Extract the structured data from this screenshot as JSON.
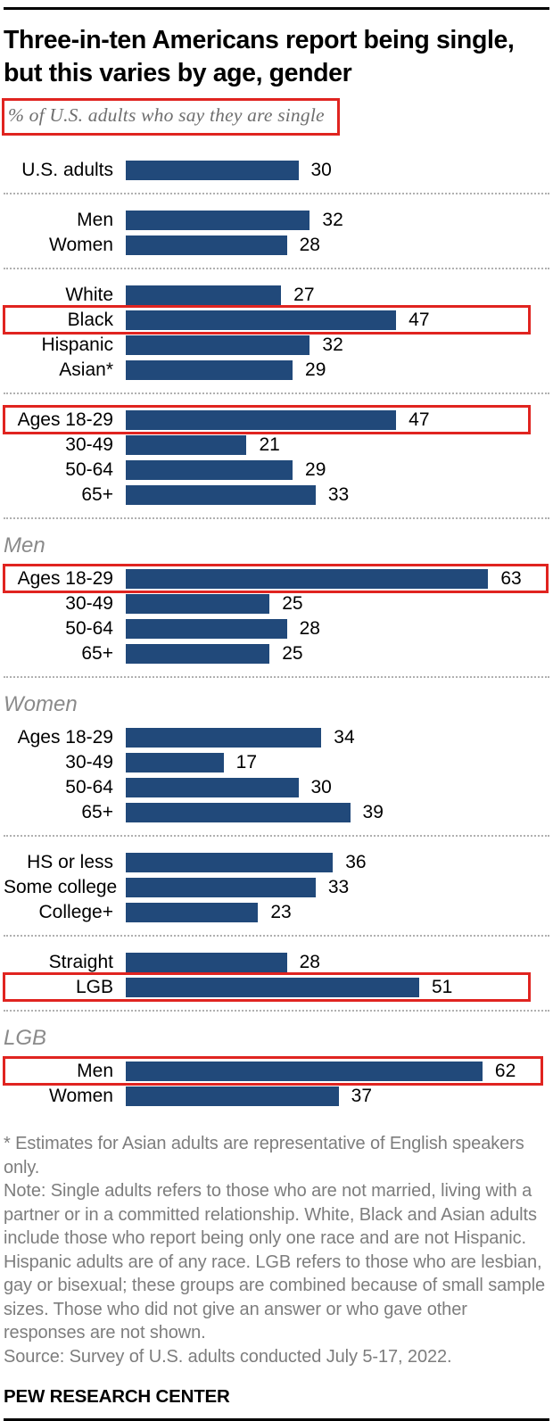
{
  "header": {
    "title": "Three-in-ten Americans report being single, but this varies by age, gender",
    "subtitle": "% of U.S. adults who say they are single"
  },
  "chart_data": {
    "type": "bar",
    "orientation": "horizontal",
    "unit": "%",
    "xlim": [
      0,
      70
    ],
    "grid": false,
    "bar_color": "#21497a",
    "highlight_box_color": "#e02420",
    "title": "Three-in-ten Americans report being single, but this varies by age, gender",
    "xlabel": "",
    "ylabel": "",
    "groups": [
      {
        "header": null,
        "rows": [
          {
            "label": "U.S. adults",
            "value": 30,
            "highlight": false
          }
        ]
      },
      {
        "header": null,
        "rows": [
          {
            "label": "Men",
            "value": 32,
            "highlight": false
          },
          {
            "label": "Women",
            "value": 28,
            "highlight": false
          }
        ]
      },
      {
        "header": null,
        "rows": [
          {
            "label": "White",
            "value": 27,
            "highlight": false
          },
          {
            "label": "Black",
            "value": 47,
            "highlight": true
          },
          {
            "label": "Hispanic",
            "value": 32,
            "highlight": false
          },
          {
            "label": "Asian*",
            "value": 29,
            "highlight": false
          }
        ]
      },
      {
        "header": null,
        "rows": [
          {
            "label": "Ages 18-29",
            "value": 47,
            "highlight": true
          },
          {
            "label": "30-49",
            "value": 21,
            "highlight": false
          },
          {
            "label": "50-64",
            "value": 29,
            "highlight": false
          },
          {
            "label": "65+",
            "value": 33,
            "highlight": false
          }
        ]
      },
      {
        "header": "Men",
        "rows": [
          {
            "label": "Ages 18-29",
            "value": 63,
            "highlight": true
          },
          {
            "label": "30-49",
            "value": 25,
            "highlight": false
          },
          {
            "label": "50-64",
            "value": 28,
            "highlight": false
          },
          {
            "label": "65+",
            "value": 25,
            "highlight": false
          }
        ]
      },
      {
        "header": "Women",
        "rows": [
          {
            "label": "Ages 18-29",
            "value": 34,
            "highlight": false
          },
          {
            "label": "30-49",
            "value": 17,
            "highlight": false
          },
          {
            "label": "50-64",
            "value": 30,
            "highlight": false
          },
          {
            "label": "65+",
            "value": 39,
            "highlight": false
          }
        ]
      },
      {
        "header": null,
        "rows": [
          {
            "label": "HS or less",
            "value": 36,
            "highlight": false
          },
          {
            "label": "Some college",
            "value": 33,
            "highlight": false
          },
          {
            "label": "College+",
            "value": 23,
            "highlight": false
          }
        ]
      },
      {
        "header": null,
        "rows": [
          {
            "label": "Straight",
            "value": 28,
            "highlight": false
          },
          {
            "label": "LGB",
            "value": 51,
            "highlight": true
          }
        ]
      },
      {
        "header": "LGB",
        "rows": [
          {
            "label": "Men",
            "value": 62,
            "highlight": true
          },
          {
            "label": "Women",
            "value": 37,
            "highlight": false
          }
        ]
      }
    ]
  },
  "footer": {
    "asterisk_note": "* Estimates for Asian adults are representative of English speakers only.",
    "note": "Note: Single adults refers to those who are not married, living with a partner or in a committed relationship. White, Black and Asian adults include those who report being only one race and are not Hispanic. Hispanic adults are of any race. LGB refers to those who are lesbian, gay or bisexual; these groups are combined because of small sample sizes. Those who did not give an answer or who gave other responses are not shown.",
    "source": "Source: Survey of U.S. adults conducted July 5-17, 2022.",
    "brand": "PEW RESEARCH CENTER"
  }
}
